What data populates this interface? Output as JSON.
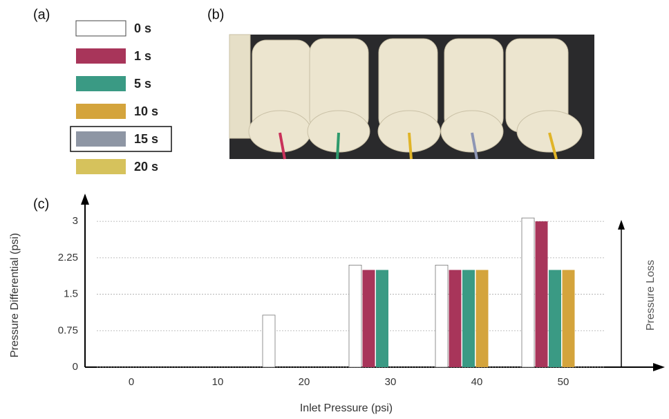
{
  "panel_labels": [
    "(a)",
    "(b)",
    "(c)"
  ],
  "chart_data": {
    "type": "bar",
    "categories": [
      "0",
      "10",
      "20",
      "30",
      "40",
      "50"
    ],
    "series": [
      {
        "name": "0 s",
        "color": "#ffffff",
        "values": [
          0,
          0,
          1.07,
          2.1,
          2.1,
          3.07
        ]
      },
      {
        "name": "1 s",
        "color": "#a8355a",
        "values": [
          0,
          0,
          0,
          2,
          2,
          3
        ]
      },
      {
        "name": "5 s",
        "color": "#3a9a84",
        "values": [
          0,
          0,
          0,
          2,
          2,
          2
        ]
      },
      {
        "name": "10 s",
        "color": "#d4a43c",
        "values": [
          0,
          0,
          0,
          0,
          2,
          2
        ]
      },
      {
        "name": "15 s",
        "color": "#8e96a4",
        "values": [
          0,
          0,
          0,
          0,
          0,
          0
        ]
      },
      {
        "name": "20 s",
        "color": "#d6c25c",
        "values": [
          0,
          0,
          0,
          0,
          0,
          0
        ]
      }
    ],
    "xlabel": "Inlet Pressure (psi)",
    "ylabel": "Pressure Differential (psi)",
    "annotation": "Pressure Loss",
    "ylim": [
      0,
      3.5
    ],
    "yticks": [
      0,
      0.75,
      1.5,
      2.25,
      3
    ],
    "grid": true
  }
}
